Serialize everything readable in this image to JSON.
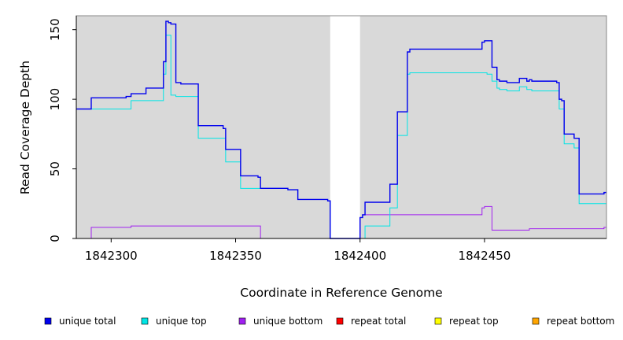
{
  "chart_data": {
    "type": "line",
    "xlabel": "Coordinate in Reference Genome",
    "ylabel": "Read Coverage Depth",
    "xlim": [
      1842286,
      1842499
    ],
    "ylim": [
      0,
      160
    ],
    "xticks": [
      {
        "value": 1842300,
        "label": "1842300"
      },
      {
        "value": 1842350,
        "label": "1842350"
      },
      {
        "value": 1842400,
        "label": "1842400"
      },
      {
        "value": 1842450,
        "label": "1842450"
      }
    ],
    "yticks": [
      {
        "value": 0,
        "label": "0"
      },
      {
        "value": 50,
        "label": "50"
      },
      {
        "value": 100,
        "label": "100"
      },
      {
        "value": 150,
        "label": "150"
      }
    ],
    "gap_region": [
      1842388,
      1842400
    ],
    "legend_position": "bottom",
    "series": [
      {
        "name": "unique total",
        "color": "#0000ee",
        "x": [
          1842286,
          1842292,
          1842306,
          1842308,
          1842314,
          1842321,
          1842322,
          1842323,
          1842324,
          1842326,
          1842328,
          1842335,
          1842345,
          1842346,
          1842352,
          1842359,
          1842360,
          1842371,
          1842375,
          1842387,
          1842388,
          1842400,
          1842401,
          1842402,
          1842412,
          1842415,
          1842419,
          1842420,
          1842449,
          1842450,
          1842451,
          1842453,
          1842455,
          1842456,
          1842459,
          1842464,
          1842467,
          1842468,
          1842469,
          1842479,
          1842480,
          1842481,
          1842482,
          1842486,
          1842488,
          1842498,
          1842499
        ],
        "y": [
          93,
          101,
          102,
          104,
          108,
          127,
          156,
          155,
          154,
          112,
          111,
          81,
          79,
          64,
          45,
          44,
          36,
          35,
          28,
          27,
          0,
          15,
          17,
          26,
          39,
          91,
          134,
          136,
          141,
          142,
          142,
          123,
          114,
          113,
          112,
          115,
          113,
          114,
          113,
          112,
          100,
          99,
          75,
          72,
          32,
          33,
          33
        ]
      },
      {
        "name": "unique top",
        "color": "#00e5e5",
        "x": [
          1842286,
          1842292,
          1842306,
          1842308,
          1842314,
          1842321,
          1842322,
          1842323,
          1842324,
          1842326,
          1842328,
          1842335,
          1842345,
          1842346,
          1842352,
          1842359,
          1842360,
          1842371,
          1842375,
          1842387,
          1842388,
          1842400,
          1842401,
          1842402,
          1842412,
          1842415,
          1842419,
          1842420,
          1842449,
          1842450,
          1842451,
          1842453,
          1842455,
          1842456,
          1842459,
          1842464,
          1842467,
          1842468,
          1842469,
          1842479,
          1842480,
          1842481,
          1842482,
          1842486,
          1842488,
          1842498,
          1842499
        ],
        "y": [
          93,
          93,
          93,
          99,
          99,
          118,
          146,
          146,
          103,
          102,
          102,
          72,
          72,
          55,
          36,
          36,
          36,
          35,
          28,
          27,
          0,
          0,
          0,
          9,
          22,
          74,
          118,
          119,
          119,
          119,
          118,
          113,
          108,
          107,
          106,
          109,
          107,
          107,
          106,
          106,
          93,
          93,
          68,
          65,
          25,
          25,
          25
        ]
      },
      {
        "name": "unique bottom",
        "color": "#a020f0",
        "x": [
          1842286,
          1842292,
          1842306,
          1842308,
          1842314,
          1842321,
          1842322,
          1842323,
          1842324,
          1842326,
          1842328,
          1842335,
          1842345,
          1842346,
          1842352,
          1842359,
          1842360,
          1842371,
          1842375,
          1842387,
          1842388,
          1842400,
          1842401,
          1842402,
          1842412,
          1842415,
          1842419,
          1842420,
          1842449,
          1842450,
          1842451,
          1842453,
          1842455,
          1842456,
          1842459,
          1842464,
          1842467,
          1842468,
          1842469,
          1842479,
          1842480,
          1842481,
          1842482,
          1842486,
          1842488,
          1842498,
          1842499
        ],
        "y": [
          0,
          8,
          8,
          9,
          9,
          9,
          9,
          9,
          9,
          9,
          9,
          9,
          9,
          9,
          9,
          9,
          0,
          0,
          0,
          0,
          0,
          15,
          17,
          17,
          17,
          17,
          17,
          17,
          22,
          23,
          23,
          6,
          6,
          6,
          6,
          6,
          6,
          7,
          7,
          7,
          7,
          7,
          7,
          7,
          7,
          8,
          8
        ]
      },
      {
        "name": "repeat total",
        "color": "#ff0000",
        "x": [
          1842286,
          1842499
        ],
        "y": [
          0,
          0
        ]
      },
      {
        "name": "repeat top",
        "color": "#ffff00",
        "x": [
          1842286,
          1842499
        ],
        "y": [
          0,
          0
        ]
      },
      {
        "name": "repeat bottom",
        "color": "#ffa500",
        "x": [
          1842286,
          1842499
        ],
        "y": [
          0,
          0
        ]
      }
    ]
  }
}
